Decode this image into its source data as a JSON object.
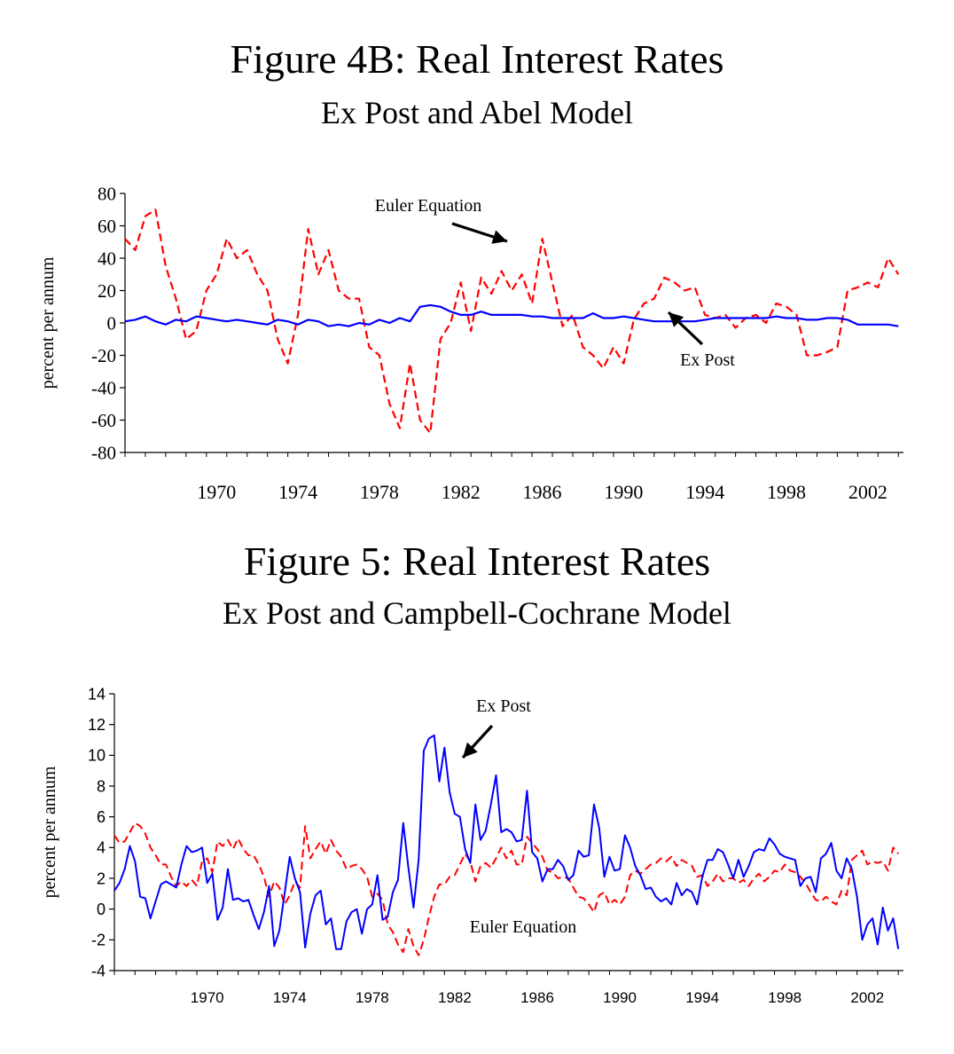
{
  "chart_data": [
    {
      "type": "line",
      "title": "Figure 4B: Real Interest Rates",
      "subtitle": "Ex Post and Abel Model",
      "ylabel": "percent per annum",
      "xlabel": "",
      "ylim": [
        -80,
        80
      ],
      "yticks": [
        "80",
        "60",
        "40",
        "20",
        "0",
        "-20",
        "-40",
        "-60",
        "-80"
      ],
      "xticks": [
        "1970",
        "1974",
        "1978",
        "1982",
        "1986",
        "1990",
        "1994",
        "1998",
        "2002"
      ],
      "xlim": [
        1966.0,
        2004.25
      ],
      "grid": false,
      "colors": {
        "ex_post": "#0000ff",
        "euler": "#ff0000"
      },
      "annotations": [
        "Euler Equation",
        "Ex Post"
      ],
      "series": [
        {
          "name": "Ex Post",
          "style": "solid",
          "x": [
            1966.0,
            1966.5,
            1967.0,
            1967.5,
            1968.0,
            1968.5,
            1969.0,
            1969.5,
            1970.0,
            1970.5,
            1971.0,
            1971.5,
            1972.0,
            1972.5,
            1973.0,
            1973.5,
            1974.0,
            1974.5,
            1975.0,
            1975.5,
            1976.0,
            1976.5,
            1977.0,
            1977.5,
            1978.0,
            1978.5,
            1979.0,
            1979.5,
            1980.0,
            1980.5,
            1981.0,
            1981.5,
            1982.0,
            1982.5,
            1983.0,
            1983.5,
            1984.0,
            1984.5,
            1985.0,
            1985.5,
            1986.0,
            1986.5,
            1987.0,
            1987.5,
            1988.0,
            1988.5,
            1989.0,
            1989.5,
            1990.0,
            1990.5,
            1991.0,
            1991.5,
            1992.0,
            1992.5,
            1993.0,
            1993.5,
            1994.0,
            1994.5,
            1995.0,
            1995.5,
            1996.0,
            1996.5,
            1997.0,
            1997.5,
            1998.0,
            1998.5,
            1999.0,
            1999.5,
            2000.0,
            2000.5,
            2001.0,
            2001.5,
            2002.0,
            2002.5,
            2003.0,
            2003.5,
            2004.0
          ],
          "values": [
            1,
            2,
            4,
            1,
            -1,
            2,
            1,
            4,
            3,
            2,
            1,
            2,
            1,
            0,
            -1,
            2,
            1,
            -1,
            2,
            1,
            -2,
            -1,
            -2,
            0,
            -1,
            2,
            0,
            3,
            1,
            10,
            11,
            10,
            7,
            5,
            5,
            7,
            5,
            5,
            5,
            5,
            4,
            4,
            3,
            3,
            3,
            3,
            6,
            3,
            3,
            4,
            3,
            2,
            1,
            1,
            1,
            1,
            1,
            2,
            3,
            3,
            3,
            3,
            3,
            3,
            4,
            3,
            3,
            2,
            2,
            3,
            3,
            2,
            -1,
            -1,
            -1,
            -1,
            -2
          ]
        },
        {
          "name": "Euler Equation",
          "style": "dashed",
          "x": [
            1966.0,
            1966.5,
            1967.0,
            1967.5,
            1968.0,
            1968.5,
            1969.0,
            1969.5,
            1970.0,
            1970.5,
            1971.0,
            1971.5,
            1972.0,
            1972.5,
            1973.0,
            1973.5,
            1974.0,
            1974.5,
            1975.0,
            1975.5,
            1976.0,
            1976.5,
            1977.0,
            1977.5,
            1978.0,
            1978.5,
            1979.0,
            1979.5,
            1980.0,
            1980.5,
            1981.0,
            1981.5,
            1982.0,
            1982.5,
            1983.0,
            1983.5,
            1984.0,
            1984.5,
            1985.0,
            1985.5,
            1986.0,
            1986.5,
            1987.0,
            1987.5,
            1988.0,
            1988.5,
            1989.0,
            1989.5,
            1990.0,
            1990.5,
            1991.0,
            1991.5,
            1992.0,
            1992.5,
            1993.0,
            1993.5,
            1994.0,
            1994.5,
            1995.0,
            1995.5,
            1996.0,
            1996.5,
            1997.0,
            1997.5,
            1998.0,
            1998.5,
            1999.0,
            1999.5,
            2000.0,
            2000.5,
            2001.0,
            2001.5,
            2002.0,
            2002.5,
            2003.0,
            2003.5,
            2004.0
          ],
          "values": [
            52,
            45,
            66,
            70,
            35,
            15,
            -10,
            -5,
            20,
            30,
            52,
            40,
            45,
            30,
            20,
            -10,
            -25,
            5,
            58,
            30,
            45,
            20,
            15,
            15,
            -15,
            -20,
            -50,
            -65,
            -25,
            -60,
            -68,
            -10,
            0,
            25,
            -5,
            28,
            18,
            32,
            20,
            30,
            12,
            52,
            25,
            -2,
            5,
            -15,
            -20,
            -28,
            -15,
            -25,
            2,
            12,
            15,
            28,
            25,
            20,
            22,
            5,
            3,
            5,
            -3,
            3,
            5,
            0,
            12,
            10,
            5,
            -20,
            -20,
            -18,
            -15,
            20,
            22,
            25,
            22,
            40,
            30
          ]
        }
      ]
    },
    {
      "type": "line",
      "title": "Figure 5: Real Interest Rates",
      "subtitle": "Ex Post and Campbell-Cochrane Model",
      "ylabel": "percent per annum",
      "xlabel": "",
      "ylim": [
        -4,
        14
      ],
      "yticks": [
        "14",
        "12",
        "10",
        "8",
        "6",
        "4",
        "2",
        "0",
        "-2",
        "-4"
      ],
      "xticks": [
        "1970",
        "1974",
        "1978",
        "1982",
        "1986",
        "1990",
        "1994",
        "1998",
        "2002"
      ],
      "xlim": [
        1966.0,
        2004.25
      ],
      "grid": false,
      "colors": {
        "ex_post": "#0000ff",
        "euler": "#ff0000"
      },
      "annotations": [
        "Ex Post",
        "Euler Equation"
      ],
      "series": [
        {
          "name": "Ex Post",
          "style": "solid",
          "x": [
            1966.0,
            1966.25,
            1966.5,
            1966.75,
            1967.0,
            1967.25,
            1967.5,
            1967.75,
            1968.0,
            1968.25,
            1968.5,
            1968.75,
            1969.0,
            1969.25,
            1969.5,
            1969.75,
            1970.0,
            1970.25,
            1970.5,
            1970.75,
            1971.0,
            1971.25,
            1971.5,
            1971.75,
            1972.0,
            1972.25,
            1972.5,
            1972.75,
            1973.0,
            1973.25,
            1973.5,
            1973.75,
            1974.0,
            1974.25,
            1974.5,
            1974.75,
            1975.0,
            1975.25,
            1975.5,
            1975.75,
            1976.0,
            1976.25,
            1976.5,
            1976.75,
            1977.0,
            1977.25,
            1977.5,
            1977.75,
            1978.0,
            1978.25,
            1978.5,
            1978.75,
            1979.0,
            1979.25,
            1979.5,
            1979.75,
            1980.0,
            1980.25,
            1980.5,
            1980.75,
            1981.0,
            1981.25,
            1981.5,
            1981.75,
            1982.0,
            1982.25,
            1982.5,
            1982.75,
            1983.0,
            1983.25,
            1983.5,
            1983.75,
            1984.0,
            1984.25,
            1984.5,
            1984.75,
            1985.0,
            1985.25,
            1985.5,
            1985.75,
            1986.0,
            1986.25,
            1986.5,
            1986.75,
            1987.0,
            1987.25,
            1987.5,
            1987.75,
            1988.0,
            1988.25,
            1988.5,
            1988.75,
            1989.0,
            1989.25,
            1989.5,
            1989.75,
            1990.0,
            1990.25,
            1990.5,
            1990.75,
            1991.0,
            1991.25,
            1991.5,
            1991.75,
            1992.0,
            1992.25,
            1992.5,
            1992.75,
            1993.0,
            1993.25,
            1993.5,
            1993.75,
            1994.0,
            1994.25,
            1994.5,
            1994.75,
            1995.0,
            1995.25,
            1995.5,
            1995.75,
            1996.0,
            1996.25,
            1996.5,
            1996.75,
            1997.0,
            1997.25,
            1997.5,
            1997.75,
            1998.0,
            1998.25,
            1998.5,
            1998.75,
            1999.0,
            1999.25,
            1999.5,
            1999.75,
            2000.0,
            2000.25,
            2000.5,
            2000.75,
            2001.0,
            2001.25,
            2001.5,
            2001.75,
            2002.0,
            2002.25,
            2002.5,
            2002.75,
            2003.0,
            2003.25,
            2003.5,
            2003.75,
            2004.0
          ],
          "values": [
            1.2,
            1.7,
            2.6,
            4.1,
            3.1,
            0.8,
            0.7,
            -0.6,
            0.5,
            1.6,
            1.8,
            1.6,
            1.4,
            2.9,
            4.1,
            3.7,
            3.8,
            4.0,
            1.7,
            2.3,
            -0.7,
            0.1,
            2.6,
            0.6,
            0.7,
            0.5,
            0.6,
            -0.4,
            -1.3,
            -0.2,
            1.5,
            -2.4,
            -1.4,
            1.0,
            3.4,
            2.0,
            1.1,
            -2.5,
            -0.3,
            0.9,
            1.2,
            -1.0,
            -0.6,
            -2.6,
            -2.6,
            -0.8,
            -0.2,
            0.0,
            -1.6,
            0.0,
            0.3,
            2.2,
            -0.7,
            -0.5,
            1.1,
            1.9,
            5.6,
            2.7,
            0.1,
            3.2,
            10.3,
            11.1,
            11.3,
            8.3,
            10.5,
            7.6,
            6.2,
            6.0,
            3.9,
            3.0,
            6.8,
            4.5,
            5.1,
            6.8,
            8.7,
            5.0,
            5.2,
            5.0,
            4.4,
            4.5,
            7.7,
            3.7,
            3.3,
            1.8,
            2.6,
            2.6,
            3.2,
            2.8,
            1.9,
            2.2,
            3.8,
            3.4,
            3.5,
            6.8,
            5.3,
            2.1,
            3.4,
            2.5,
            2.6,
            4.8,
            4.0,
            2.8,
            2.2,
            1.3,
            1.4,
            0.8,
            0.5,
            0.7,
            0.3,
            1.7,
            0.9,
            1.3,
            1.1,
            0.3,
            2.1,
            3.2,
            3.2,
            3.9,
            3.7,
            2.9,
            2.0,
            3.2,
            2.1,
            2.8,
            3.7,
            3.9,
            3.8,
            4.6,
            4.2,
            3.6,
            3.4,
            3.3,
            3.2,
            1.5,
            2.0,
            2.1,
            1.1,
            3.3,
            3.6,
            4.3,
            2.5,
            2.0,
            3.3,
            2.6,
            0.8,
            -2.0,
            -1.0,
            -0.6,
            -2.3,
            0.1,
            -1.4,
            -0.6,
            -2.6
          ]
        },
        {
          "name": "Euler Equation",
          "style": "dashed",
          "x": [
            1966.0,
            1966.25,
            1966.5,
            1966.75,
            1967.0,
            1967.25,
            1967.5,
            1967.75,
            1968.0,
            1968.25,
            1968.5,
            1968.75,
            1969.0,
            1969.25,
            1969.5,
            1969.75,
            1970.0,
            1970.25,
            1970.5,
            1970.75,
            1971.0,
            1971.25,
            1971.5,
            1971.75,
            1972.0,
            1972.25,
            1972.5,
            1972.75,
            1973.0,
            1973.25,
            1973.5,
            1973.75,
            1974.0,
            1974.25,
            1974.5,
            1974.75,
            1975.0,
            1975.25,
            1975.5,
            1975.75,
            1976.0,
            1976.25,
            1976.5,
            1976.75,
            1977.0,
            1977.25,
            1977.5,
            1977.75,
            1978.0,
            1978.25,
            1978.5,
            1978.75,
            1979.0,
            1979.25,
            1979.5,
            1979.75,
            1980.0,
            1980.25,
            1980.5,
            1980.75,
            1981.0,
            1981.25,
            1981.5,
            1981.75,
            1982.0,
            1982.25,
            1982.5,
            1982.75,
            1983.0,
            1983.25,
            1983.5,
            1983.75,
            1984.0,
            1984.25,
            1984.5,
            1984.75,
            1985.0,
            1985.25,
            1985.5,
            1985.75,
            1986.0,
            1986.25,
            1986.5,
            1986.75,
            1987.0,
            1987.25,
            1987.5,
            1987.75,
            1988.0,
            1988.25,
            1988.5,
            1988.75,
            1989.0,
            1989.25,
            1989.5,
            1989.75,
            1990.0,
            1990.25,
            1990.5,
            1990.75,
            1991.0,
            1991.25,
            1991.5,
            1991.75,
            1992.0,
            1992.25,
            1992.5,
            1992.75,
            1993.0,
            1993.25,
            1993.5,
            1993.75,
            1994.0,
            1994.25,
            1994.5,
            1994.75,
            1995.0,
            1995.25,
            1995.5,
            1995.75,
            1996.0,
            1996.25,
            1996.5,
            1996.75,
            1997.0,
            1997.25,
            1997.5,
            1997.75,
            1998.0,
            1998.25,
            1998.5,
            1998.75,
            1999.0,
            1999.25,
            1999.5,
            1999.75,
            2000.0,
            2000.25,
            2000.5,
            2000.75,
            2001.0,
            2001.25,
            2001.5,
            2001.75,
            2002.0,
            2002.25,
            2002.5,
            2002.75,
            2003.0,
            2003.25,
            2003.5,
            2003.75,
            2004.0
          ],
          "values": [
            4.8,
            4.3,
            4.4,
            5.0,
            5.6,
            5.4,
            4.9,
            4.0,
            3.5,
            2.9,
            2.9,
            2.1,
            1.5,
            1.8,
            1.5,
            1.9,
            1.5,
            3.1,
            3.3,
            2.4,
            4.4,
            4.1,
            4.5,
            3.9,
            4.6,
            3.9,
            3.5,
            3.5,
            2.9,
            2.1,
            0.8,
            1.8,
            1.4,
            0.3,
            0.9,
            1.8,
            1.4,
            5.4,
            3.3,
            3.9,
            4.4,
            3.6,
            4.5,
            3.8,
            3.4,
            2.6,
            2.8,
            2.9,
            2.6,
            2.1,
            0.8,
            1.0,
            0.6,
            -1.0,
            -1.5,
            -2.3,
            -2.8,
            -1.3,
            -2.4,
            -3.0,
            -2.0,
            -0.5,
            0.8,
            1.6,
            1.6,
            2.1,
            2.2,
            2.9,
            3.6,
            3.1,
            1.8,
            2.8,
            3.0,
            2.7,
            3.3,
            4.0,
            3.3,
            3.8,
            2.9,
            2.9,
            4.7,
            4.3,
            3.9,
            3.4,
            2.5,
            2.4,
            2.0,
            2.1,
            2.0,
            1.4,
            0.8,
            0.7,
            0.3,
            -0.2,
            0.9,
            1.1,
            0.3,
            0.6,
            0.3,
            0.8,
            2.2,
            2.5,
            2.3,
            2.6,
            2.9,
            3.0,
            3.3,
            3.1,
            3.4,
            2.8,
            3.2,
            3.0,
            2.8,
            2.1,
            2.2,
            1.5,
            1.8,
            2.3,
            1.8,
            2.0,
            2.0,
            1.7,
            1.9,
            1.5,
            2.0,
            2.3,
            1.8,
            2.1,
            2.5,
            2.4,
            2.9,
            2.5,
            2.4,
            2.1,
            1.7,
            1.1,
            0.6,
            0.5,
            0.8,
            0.5,
            0.3,
            1.2,
            0.9,
            3.2,
            3.5,
            3.8,
            2.9,
            3.1,
            3.0,
            3.1,
            2.5,
            4.0,
            3.6
          ]
        }
      ]
    }
  ]
}
